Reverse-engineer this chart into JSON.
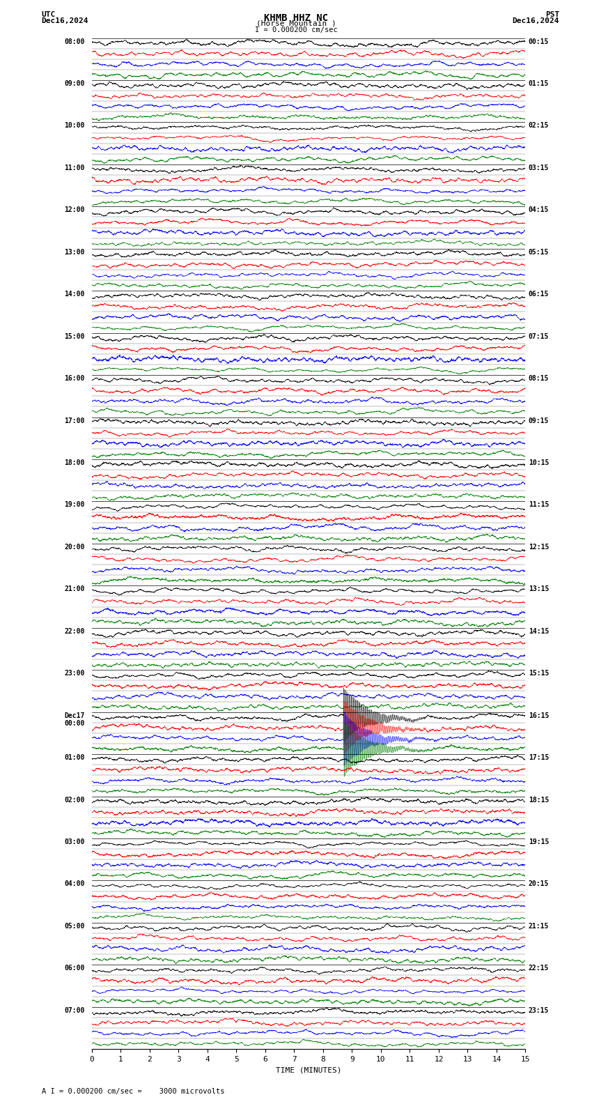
{
  "title_line1": "KHMB HHZ NC",
  "title_line2": "(Horse Mountain )",
  "scale_label": "I = 0.000200 cm/sec",
  "utc_label": "UTC",
  "pst_label": "PST",
  "date_left": "Dec16,2024",
  "date_right": "Dec16,2024",
  "bottom_label": "A I = 0.000200 cm/sec =    3000 microvolts",
  "xlabel": "TIME (MINUTES)",
  "bg_color": "#ffffff",
  "trace_colors": [
    "#000000",
    "#ff0000",
    "#0000ff",
    "#008000"
  ],
  "left_times_utc": [
    "08:00",
    "09:00",
    "10:00",
    "11:00",
    "12:00",
    "13:00",
    "14:00",
    "15:00",
    "16:00",
    "17:00",
    "18:00",
    "19:00",
    "20:00",
    "21:00",
    "22:00",
    "23:00",
    "Dec17\n00:00",
    "01:00",
    "02:00",
    "03:00",
    "04:00",
    "05:00",
    "06:00",
    "07:00"
  ],
  "right_times_pst": [
    "00:15",
    "01:15",
    "02:15",
    "03:15",
    "04:15",
    "05:15",
    "06:15",
    "07:15",
    "08:15",
    "09:15",
    "10:15",
    "11:15",
    "12:15",
    "13:15",
    "14:15",
    "15:15",
    "16:15",
    "17:15",
    "18:15",
    "19:15",
    "20:15",
    "21:15",
    "22:15",
    "23:15"
  ],
  "num_rows": 24,
  "sub_bands": 4,
  "xticks": [
    0,
    1,
    2,
    3,
    4,
    5,
    6,
    7,
    8,
    9,
    10,
    11,
    12,
    13,
    14,
    15
  ],
  "xmin": 0,
  "xmax": 15,
  "quake_row": 16,
  "quake_minute": 8.7,
  "quake_amplitude": 3.0,
  "font_size_title": 10,
  "font_size_labels": 8,
  "font_size_ticks": 8
}
